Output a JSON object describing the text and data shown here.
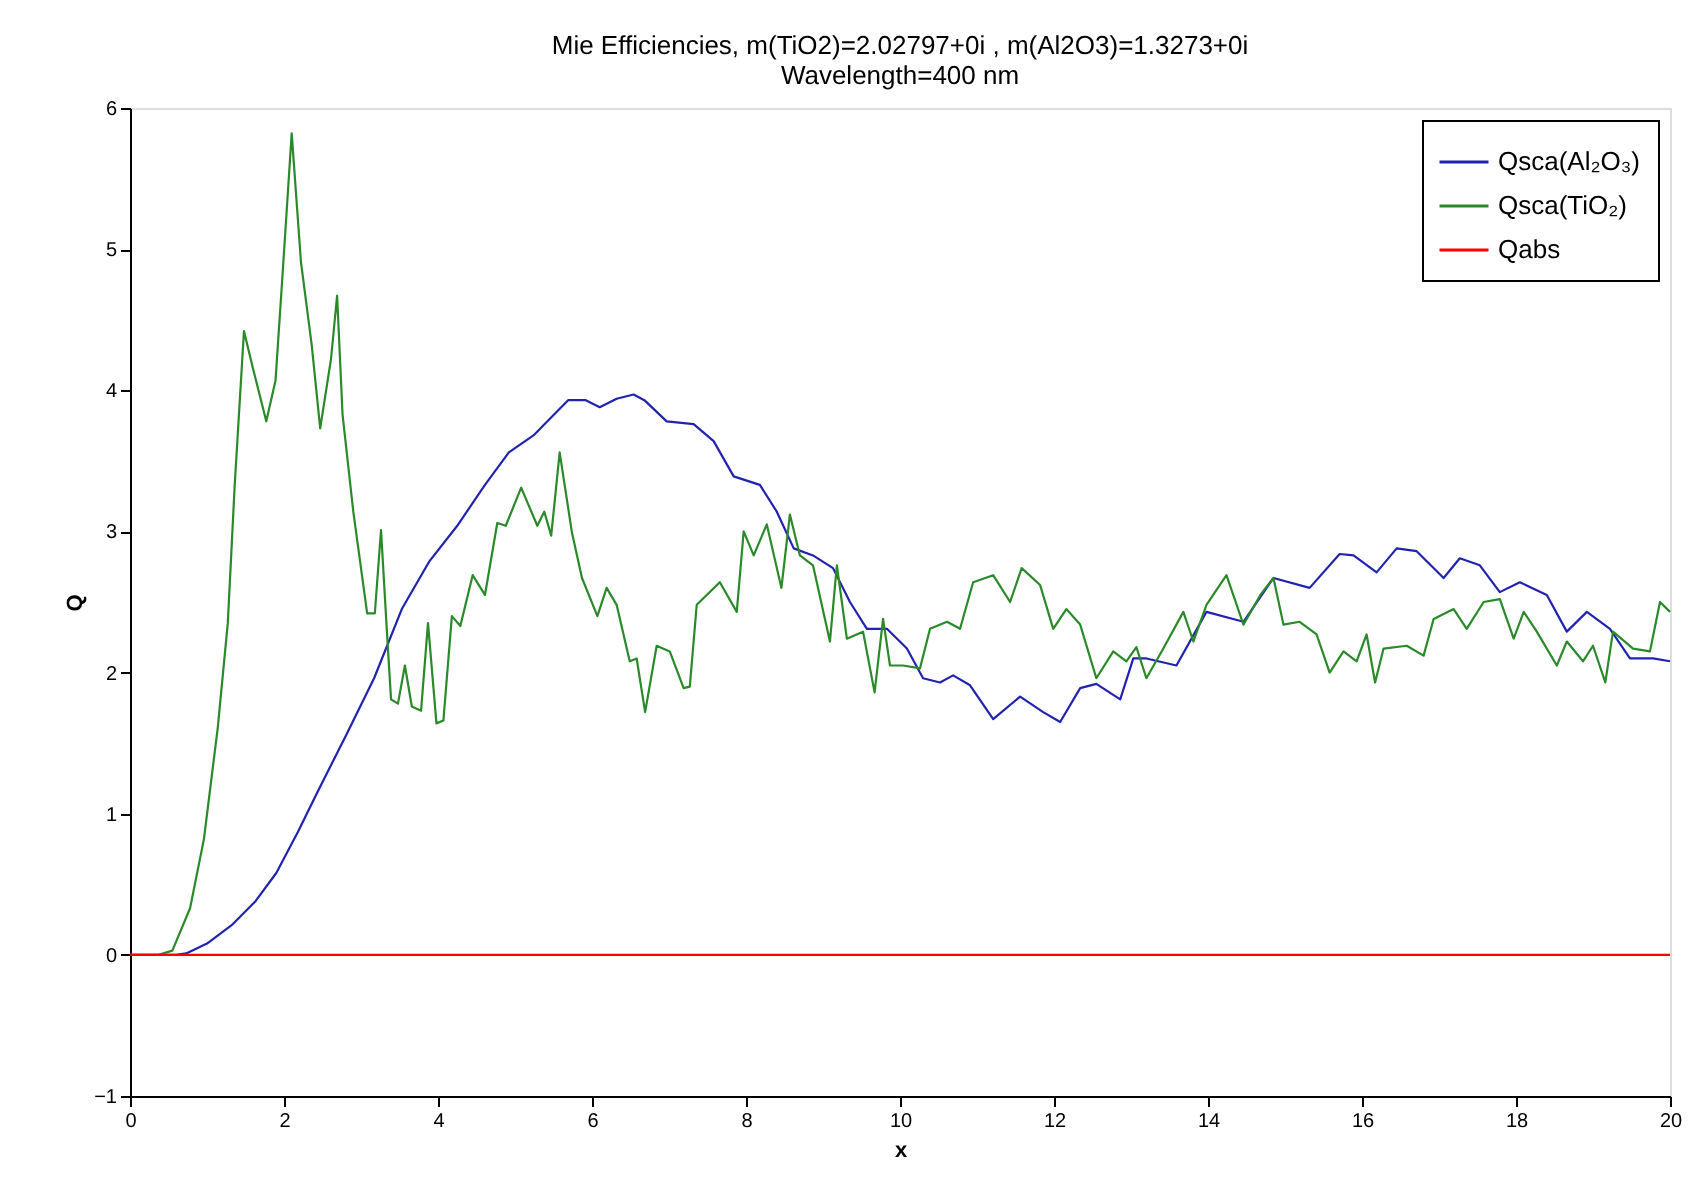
{
  "chart_data": {
    "type": "line",
    "title": "Mie Efficiencies, m(TiO2)=2.02797+0i , m(Al2O3)=1.3273+0i",
    "subtitle": "Wavelength=400 nm",
    "xlabel": "x",
    "ylabel": "Q",
    "xlim": [
      0,
      20
    ],
    "xticks": [
      0,
      2,
      4,
      6,
      8,
      10,
      12,
      14,
      16,
      18,
      20
    ],
    "ylim": [
      -1,
      6
    ],
    "yticks": [
      -1,
      0,
      1,
      2,
      3,
      4,
      5,
      6
    ],
    "grid": false,
    "legend": "top right",
    "marker": "none",
    "line_style": "solid",
    "series": [
      {
        "name": "Qsca(Al₂O₃)",
        "color": "#2222b0",
        "x": [
          0,
          0.6,
          0.73,
          1.0,
          1.32,
          1.63,
          1.9,
          2.18,
          2.45,
          2.81,
          3.17,
          3.53,
          3.89,
          4.25,
          4.61,
          4.92,
          5.24,
          5.51,
          5.69,
          5.92,
          6.1,
          6.32,
          6.54,
          6.68,
          6.97,
          7.32,
          7.58,
          7.84,
          8.18,
          8.4,
          8.62,
          8.87,
          9.13,
          9.35,
          9.57,
          9.83,
          10.09,
          10.3,
          10.52,
          10.69,
          10.91,
          11.21,
          11.56,
          11.86,
          12.08,
          12.34,
          12.55,
          12.86,
          13.03,
          13.2,
          13.59,
          13.98,
          14.46,
          14.85,
          15.32,
          15.71,
          15.89,
          16.19,
          16.45,
          16.71,
          17.06,
          17.27,
          17.53,
          17.79,
          18.05,
          18.4,
          18.66,
          18.92,
          19.22,
          19.48,
          19.78,
          20
        ],
        "values": [
          0,
          0,
          0.01,
          0.08,
          0.21,
          0.38,
          0.58,
          0.87,
          1.17,
          1.56,
          1.96,
          2.45,
          2.79,
          3.04,
          3.33,
          3.56,
          3.68,
          3.83,
          3.93,
          3.93,
          3.88,
          3.94,
          3.97,
          3.93,
          3.78,
          3.76,
          3.64,
          3.39,
          3.33,
          3.14,
          2.88,
          2.83,
          2.74,
          2.5,
          2.31,
          2.31,
          2.17,
          1.96,
          1.93,
          1.98,
          1.91,
          1.67,
          1.83,
          1.72,
          1.65,
          1.89,
          1.92,
          1.81,
          2.1,
          2.1,
          2.05,
          2.43,
          2.36,
          2.67,
          2.6,
          2.84,
          2.83,
          2.71,
          2.88,
          2.86,
          2.67,
          2.81,
          2.76,
          2.57,
          2.64,
          2.55,
          2.29,
          2.43,
          2.31,
          2.1,
          2.1,
          2.08
        ]
      },
      {
        "name": "Qsca(TiO₂)",
        "color": "#2a8a2a",
        "x": [
          0,
          0.37,
          0.55,
          0.78,
          0.96,
          1.14,
          1.27,
          1.36,
          1.48,
          1.59,
          1.77,
          1.89,
          1.98,
          2.1,
          2.22,
          2.36,
          2.47,
          2.61,
          2.69,
          2.76,
          2.9,
          3.08,
          3.18,
          3.26,
          3.33,
          3.39,
          3.48,
          3.57,
          3.66,
          3.78,
          3.87,
          3.98,
          4.07,
          4.18,
          4.29,
          4.45,
          4.61,
          4.77,
          4.88,
          5.08,
          5.29,
          5.38,
          5.47,
          5.58,
          5.74,
          5.87,
          6.07,
          6.19,
          6.32,
          6.49,
          6.58,
          6.69,
          6.84,
          7.01,
          7.19,
          7.27,
          7.36,
          7.66,
          7.88,
          7.97,
          8.1,
          8.27,
          8.46,
          8.57,
          8.7,
          8.87,
          9.09,
          9.18,
          9.31,
          9.52,
          9.67,
          9.78,
          9.87,
          10.04,
          10.26,
          10.39,
          10.61,
          10.78,
          10.95,
          11.21,
          11.43,
          11.58,
          11.82,
          11.99,
          12.16,
          12.34,
          12.55,
          12.77,
          12.94,
          13.07,
          13.2,
          13.42,
          13.68,
          13.81,
          13.98,
          14.24,
          14.46,
          14.68,
          14.85,
          14.98,
          15.19,
          15.41,
          15.58,
          15.76,
          15.93,
          16.06,
          16.17,
          16.28,
          16.58,
          16.8,
          16.93,
          17.19,
          17.36,
          17.58,
          17.79,
          17.97,
          18.1,
          18.27,
          18.53,
          18.66,
          18.87,
          19.0,
          19.16,
          19.26,
          19.52,
          19.74,
          19.87,
          20
        ],
        "values": [
          0,
          0,
          0.03,
          0.33,
          0.82,
          1.61,
          2.35,
          3.33,
          4.42,
          4.17,
          3.78,
          4.07,
          4.81,
          5.82,
          4.91,
          4.32,
          3.73,
          4.22,
          4.67,
          3.83,
          3.14,
          2.42,
          2.42,
          3.01,
          2.35,
          1.81,
          1.78,
          2.05,
          1.76,
          1.73,
          2.35,
          1.64,
          1.66,
          2.4,
          2.33,
          2.69,
          2.55,
          3.06,
          3.04,
          3.31,
          3.04,
          3.14,
          2.97,
          3.56,
          2.99,
          2.67,
          2.4,
          2.6,
          2.48,
          2.08,
          2.1,
          1.72,
          2.19,
          2.15,
          1.89,
          1.9,
          2.48,
          2.64,
          2.43,
          3.0,
          2.83,
          3.05,
          2.6,
          3.12,
          2.83,
          2.76,
          2.22,
          2.76,
          2.24,
          2.29,
          1.86,
          2.38,
          2.05,
          2.05,
          2.03,
          2.31,
          2.36,
          2.31,
          2.64,
          2.69,
          2.5,
          2.74,
          2.62,
          2.31,
          2.45,
          2.34,
          1.96,
          2.15,
          2.08,
          2.18,
          1.96,
          2.17,
          2.43,
          2.22,
          2.48,
          2.69,
          2.34,
          2.55,
          2.67,
          2.34,
          2.36,
          2.27,
          2.0,
          2.15,
          2.08,
          2.27,
          1.93,
          2.17,
          2.19,
          2.12,
          2.38,
          2.45,
          2.31,
          2.5,
          2.52,
          2.24,
          2.43,
          2.29,
          2.05,
          2.22,
          2.08,
          2.19,
          1.93,
          2.29,
          2.17,
          2.15,
          2.5,
          2.43
        ]
      },
      {
        "name": "Qabs",
        "color": "#ff0000",
        "x": [
          0,
          20
        ],
        "values": [
          0,
          0
        ]
      }
    ]
  }
}
